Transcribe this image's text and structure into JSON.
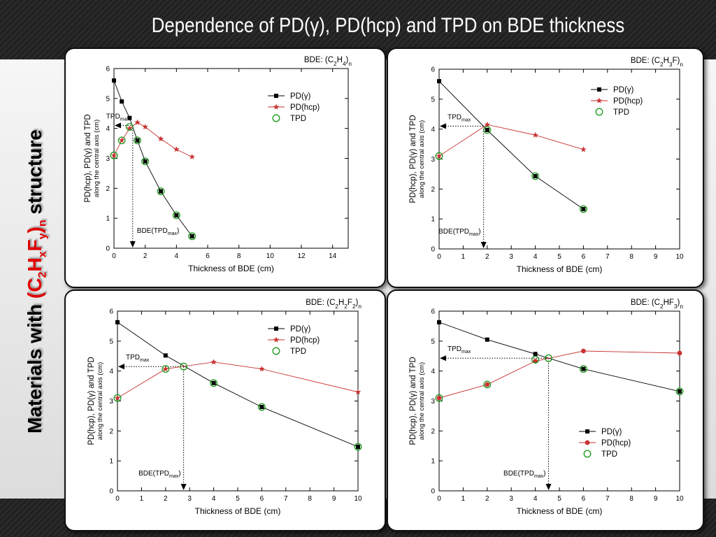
{
  "slide_title": "Dependence of PD(γ), PD(hcp) and TPD on BDE thickness",
  "side_title": {
    "prefix": "Materials with ",
    "formula": "(C2HxFy)n",
    "suffix": " structure"
  },
  "chart_data": [
    {
      "type": "line",
      "material_label": "BDE: (C2H4)n",
      "xlabel": "Thickness of BDE (cm)",
      "ylabel": "PD(hcp), PD(γ) and TPD",
      "ylabel2": "along the central axis (cm)",
      "xlim": [
        0,
        15
      ],
      "xticks": [
        0,
        2,
        4,
        6,
        8,
        10,
        12,
        14
      ],
      "ylim": [
        0,
        6
      ],
      "yticks": [
        0,
        1,
        2,
        3,
        4,
        5,
        6
      ],
      "legend_position": "top-right",
      "series": [
        {
          "name": "PD(γ)",
          "color": "#000000",
          "marker": "square",
          "x": [
            0,
            0.5,
            1,
            1.5,
            2,
            3,
            4,
            5
          ],
          "y": [
            5.6,
            4.9,
            4.35,
            3.6,
            2.9,
            1.9,
            1.1,
            0.4
          ]
        },
        {
          "name": "PD(hcp)",
          "color": "#c83232",
          "marker": "star",
          "x": [
            0,
            0.5,
            1,
            1.5,
            2,
            3,
            4,
            5
          ],
          "y": [
            3.1,
            3.6,
            4.0,
            4.2,
            4.05,
            3.65,
            3.3,
            3.05
          ]
        },
        {
          "name": "TPD",
          "color": "#1a9a1a",
          "marker": "circle",
          "x": [
            0,
            0.5,
            1,
            1.5,
            2,
            3,
            4,
            5
          ],
          "y": [
            3.1,
            3.6,
            4.05,
            3.6,
            2.9,
            1.9,
            1.1,
            0.4
          ]
        }
      ],
      "tpd_max": {
        "x": 1.2,
        "y": 4.1,
        "y_label": "TPDmax",
        "x_label": "BDE(TPDmax)"
      }
    },
    {
      "type": "line",
      "material_label": "BDE: (C2H3F)n",
      "xlabel": "Thickness of BDE (cm)",
      "ylabel": "PD(hcp), PD(γ) and TPD",
      "ylabel2": "along the central axis (cm)",
      "xlim": [
        0,
        10
      ],
      "xticks": [
        0,
        1,
        2,
        3,
        4,
        5,
        6,
        7,
        8,
        9,
        10
      ],
      "ylim": [
        0,
        6
      ],
      "yticks": [
        0,
        1,
        2,
        3,
        4,
        5,
        6
      ],
      "legend_position": "top-right",
      "series": [
        {
          "name": "PD(γ)",
          "color": "#000000",
          "marker": "square",
          "x": [
            0,
            2,
            4,
            6
          ],
          "y": [
            5.6,
            3.97,
            2.43,
            1.33
          ]
        },
        {
          "name": "PD(hcp)",
          "color": "#c83232",
          "marker": "star",
          "x": [
            0,
            2,
            4,
            6
          ],
          "y": [
            3.1,
            4.15,
            3.8,
            3.32
          ]
        },
        {
          "name": "TPD",
          "color": "#1a9a1a",
          "marker": "circle",
          "x": [
            0,
            2,
            4,
            6
          ],
          "y": [
            3.1,
            3.97,
            2.43,
            1.33
          ]
        }
      ],
      "tpd_max": {
        "x": 1.85,
        "y": 4.1,
        "y_label": "TPDmax",
        "x_label": "BDE(TPDmax)"
      }
    },
    {
      "type": "line",
      "material_label": "BDE: (C2H2F2)n",
      "xlabel": "Thickness of BDE (cm)",
      "ylabel": "PD(hcp), PD(γ) and TPD",
      "ylabel2": "along the central axis (cm)",
      "xlim": [
        0,
        10
      ],
      "xticks": [
        0,
        1,
        2,
        3,
        4,
        5,
        6,
        7,
        8,
        9,
        10
      ],
      "ylim": [
        0,
        6
      ],
      "yticks": [
        0,
        1,
        2,
        3,
        4,
        5,
        6
      ],
      "legend_position": "top-right",
      "series": [
        {
          "name": "PD(γ)",
          "color": "#000000",
          "marker": "square",
          "x": [
            0,
            2,
            4,
            6,
            10
          ],
          "y": [
            5.63,
            4.52,
            3.6,
            2.8,
            1.47
          ]
        },
        {
          "name": "PD(hcp)",
          "color": "#c83232",
          "marker": "star",
          "x": [
            0,
            2,
            4,
            6,
            10
          ],
          "y": [
            3.1,
            4.07,
            4.3,
            4.07,
            3.3
          ]
        },
        {
          "name": "TPD",
          "color": "#1a9a1a",
          "marker": "circle",
          "x": [
            0,
            2,
            2.75,
            4,
            6,
            10
          ],
          "y": [
            3.1,
            4.07,
            4.15,
            3.6,
            2.8,
            1.47
          ]
        }
      ],
      "tpd_max": {
        "x": 2.75,
        "y": 4.15,
        "y_label": "TPDmax",
        "x_label": "BDE(TPDmax)"
      }
    },
    {
      "type": "line",
      "material_label": "BDE: (C2HF3)n",
      "xlabel": "Thickness of BDE (cm)",
      "ylabel": "PD(hcp), PD(γ) and TPD",
      "ylabel2": "along the central axis (cm)",
      "xlim": [
        0,
        10
      ],
      "xticks": [
        0,
        1,
        2,
        3,
        4,
        5,
        6,
        7,
        8,
        9,
        10
      ],
      "ylim": [
        0,
        6
      ],
      "yticks": [
        0,
        1,
        2,
        3,
        4,
        5,
        6
      ],
      "legend_position": "bottom-right",
      "series": [
        {
          "name": "PD(γ)",
          "color": "#000000",
          "marker": "square",
          "x": [
            0,
            2,
            4,
            6,
            10
          ],
          "y": [
            5.63,
            5.05,
            4.57,
            4.07,
            3.32
          ]
        },
        {
          "name": "PD(hcp)",
          "color": "#c83232",
          "marker": "dot",
          "x": [
            0,
            2,
            4,
            6,
            10
          ],
          "y": [
            3.1,
            3.55,
            4.33,
            4.67,
            4.6
          ]
        },
        {
          "name": "TPD",
          "color": "#1a9a1a",
          "marker": "circle",
          "x": [
            0,
            2,
            4,
            4.55,
            6,
            10
          ],
          "y": [
            3.1,
            3.55,
            4.38,
            4.43,
            4.07,
            3.32
          ]
        }
      ],
      "tpd_max": {
        "x": 4.55,
        "y": 4.43,
        "y_label": "TPDmax",
        "x_label": "BDE(TPDmax)"
      }
    }
  ]
}
